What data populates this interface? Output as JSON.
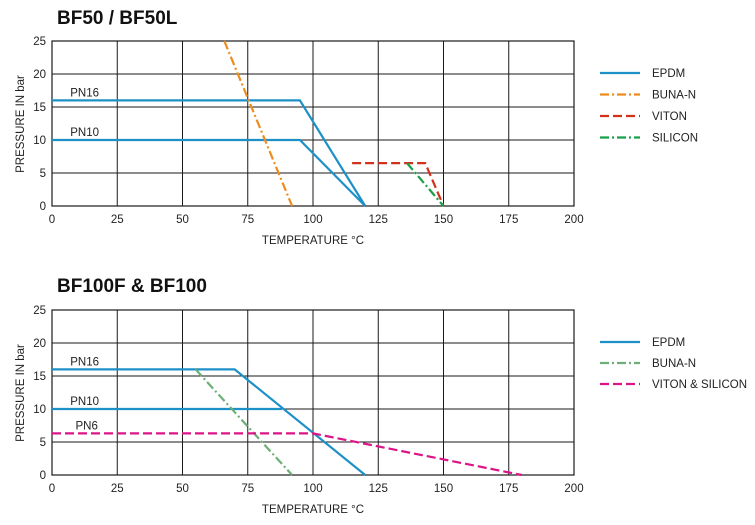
{
  "chart_data": [
    {
      "type": "line",
      "title": "BF50 / BF50L",
      "xlabel": "TEMPERATURE °C",
      "ylabel": "PRESSURE IN bar",
      "xlim": [
        0,
        200
      ],
      "ylim": [
        0,
        25
      ],
      "xticks": [
        "0",
        "25",
        "50",
        "75",
        "100",
        "125",
        "150",
        "175",
        "200"
      ],
      "yticks": [
        "0",
        "5",
        "10",
        "15",
        "20",
        "25"
      ],
      "grid": true,
      "legend_position": "right",
      "series": [
        {
          "name": "EPDM",
          "color": "#1e90c8",
          "dash": "solid",
          "lines": [
            [
              [
                0,
                16
              ],
              [
                95,
                16
              ],
              [
                120,
                0
              ]
            ],
            [
              [
                0,
                10
              ],
              [
                95,
                10
              ],
              [
                120,
                0
              ]
            ]
          ]
        },
        {
          "name": "BUNA-N",
          "color": "#ee8c1e",
          "dash": "dashdot",
          "lines": [
            [
              [
                66,
                25
              ],
              [
                92,
                0
              ]
            ]
          ]
        },
        {
          "name": "VITON",
          "color": "#d23219",
          "dash": "dashed",
          "lines": [
            [
              [
                115,
                6.5
              ],
              [
                143,
                6.5
              ],
              [
                150,
                0
              ]
            ]
          ]
        },
        {
          "name": "SILICON",
          "color": "#19a046",
          "dash": "dashdot",
          "lines": [
            [
              [
                136,
                6.5
              ],
              [
                150,
                0
              ]
            ]
          ]
        }
      ],
      "annotations": [
        {
          "text": "PN16",
          "x": 7,
          "y": 16
        },
        {
          "text": "PN10",
          "x": 7,
          "y": 10
        }
      ]
    },
    {
      "type": "line",
      "title": "BF100F & BF100",
      "xlabel": "TEMPERATURE °C",
      "ylabel": "PRESSURE IN bar",
      "xlim": [
        0,
        200
      ],
      "ylim": [
        0,
        25
      ],
      "xticks": [
        "0",
        "25",
        "50",
        "75",
        "100",
        "125",
        "150",
        "175",
        "200"
      ],
      "yticks": [
        "0",
        "5",
        "10",
        "15",
        "20",
        "25"
      ],
      "grid": true,
      "legend_position": "right",
      "series": [
        {
          "name": "EPDM",
          "color": "#1e90c8",
          "dash": "solid",
          "lines": [
            [
              [
                0,
                16
              ],
              [
                70,
                16
              ],
              [
                120,
                0
              ]
            ],
            [
              [
                0,
                10
              ],
              [
                88,
                10
              ]
            ]
          ]
        },
        {
          "name": "BUNA-N",
          "color": "#6eaf78",
          "dash": "dashdot",
          "lines": [
            [
              [
                55,
                16
              ],
              [
                92,
                0
              ]
            ]
          ]
        },
        {
          "name": "VITON & SILICON",
          "color": "#dc1487",
          "dash": "dashed",
          "lines": [
            [
              [
                0,
                6.3
              ],
              [
                100,
                6.3
              ],
              [
                180,
                0
              ]
            ]
          ]
        }
      ],
      "annotations": [
        {
          "text": "PN16",
          "x": 7,
          "y": 16
        },
        {
          "text": "PN10",
          "x": 7,
          "y": 10
        },
        {
          "text": "PN6",
          "x": 9,
          "y": 6.3
        }
      ]
    }
  ]
}
